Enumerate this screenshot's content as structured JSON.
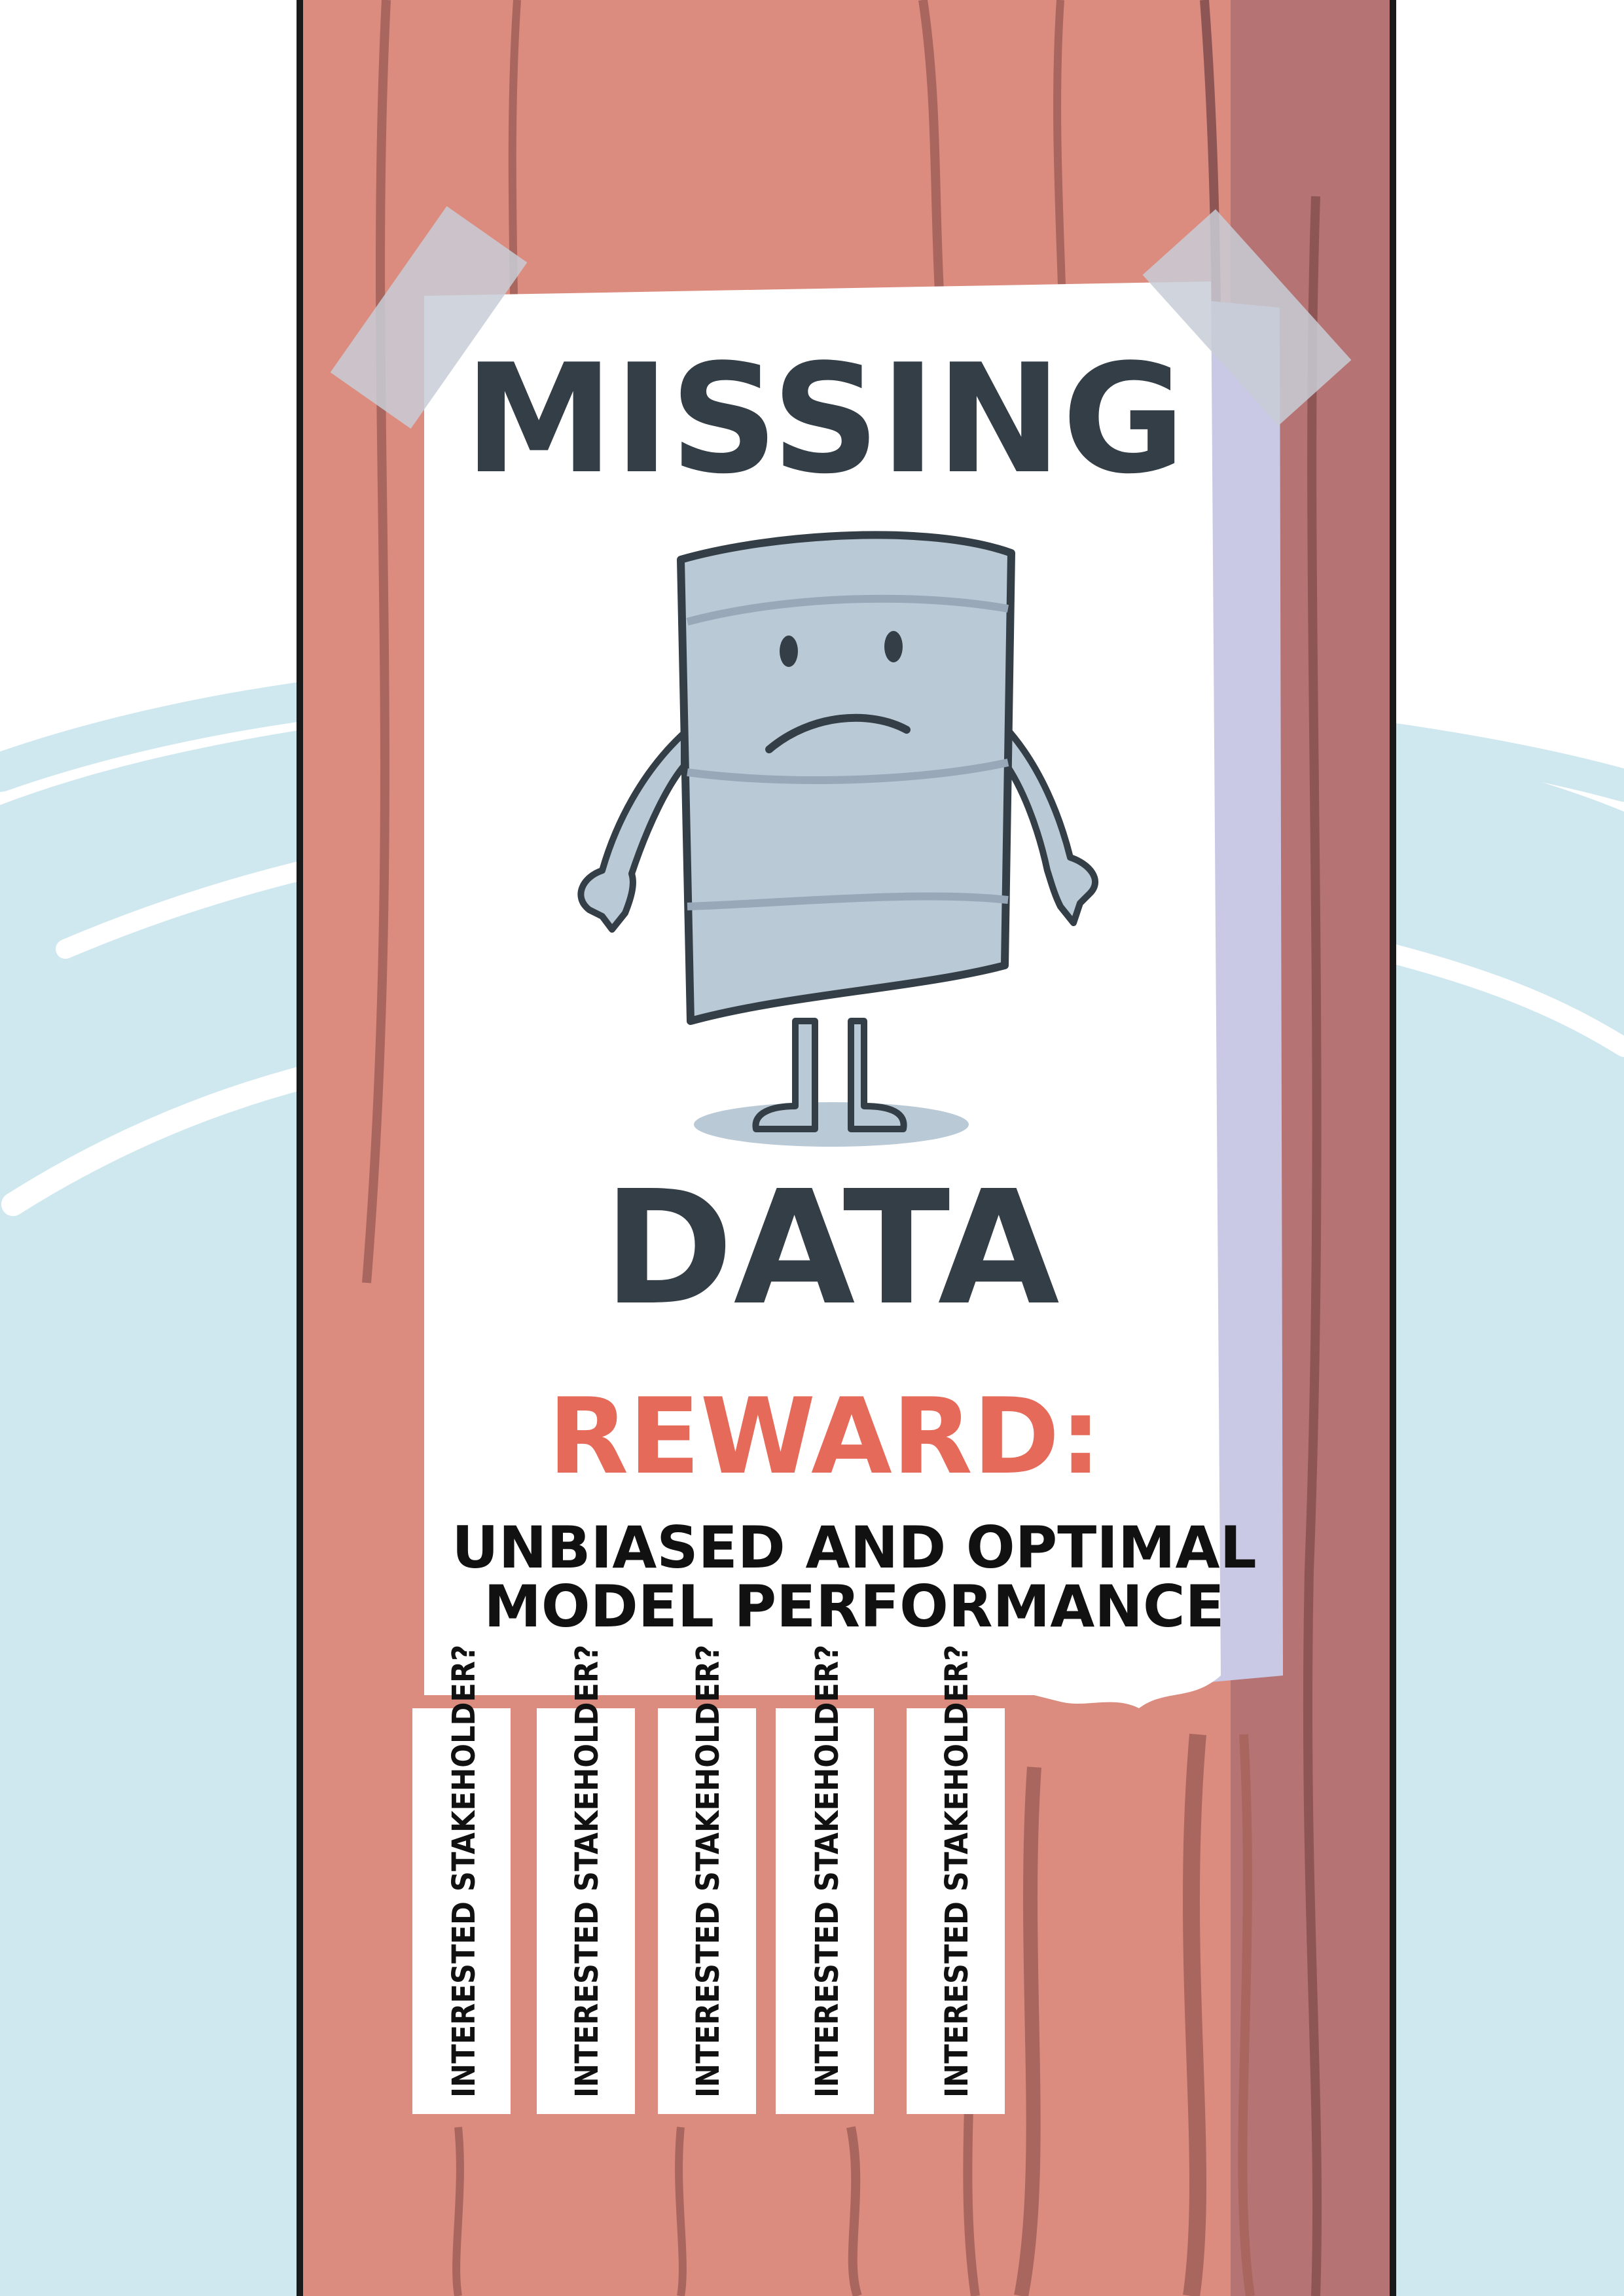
{
  "poster": {
    "headline_top": "MISSING",
    "headline_bottom": "DATA",
    "reward_label": "REWARD:",
    "reward_line1": "UNBIASED AND OPTIMAL",
    "reward_line2": "MODEL PERFORMANCE"
  },
  "tear_tabs": [
    {
      "label": "INTERESTED STAKEHOLDER?"
    },
    {
      "label": "INTERESTED STAKEHOLDER?"
    },
    {
      "label": "INTERESTED STAKEHOLDER?"
    },
    {
      "label": "INTERESTED STAKEHOLDER?"
    },
    {
      "label": "INTERESTED STAKEHOLDER?"
    }
  ],
  "colors": {
    "sky_light": "#cfe8ef",
    "sky_swoosh": "#b9dde7",
    "pole": "#db8c7e",
    "pole_shadow": "#b57373",
    "wood_grain": "#a8665e",
    "outline": "#1a1a1a",
    "poster_paper": "#ffffff",
    "paper_fold": "#c9c9e6",
    "tape": "#c8cdd6",
    "headline": "#343e47",
    "reward": "#e56a5a",
    "body_text": "#111111",
    "barrel": "#bac9d6",
    "barrel_band": "#98a8b8"
  },
  "icons": [
    "sad-data-barrel-icon",
    "tape-icon"
  ]
}
